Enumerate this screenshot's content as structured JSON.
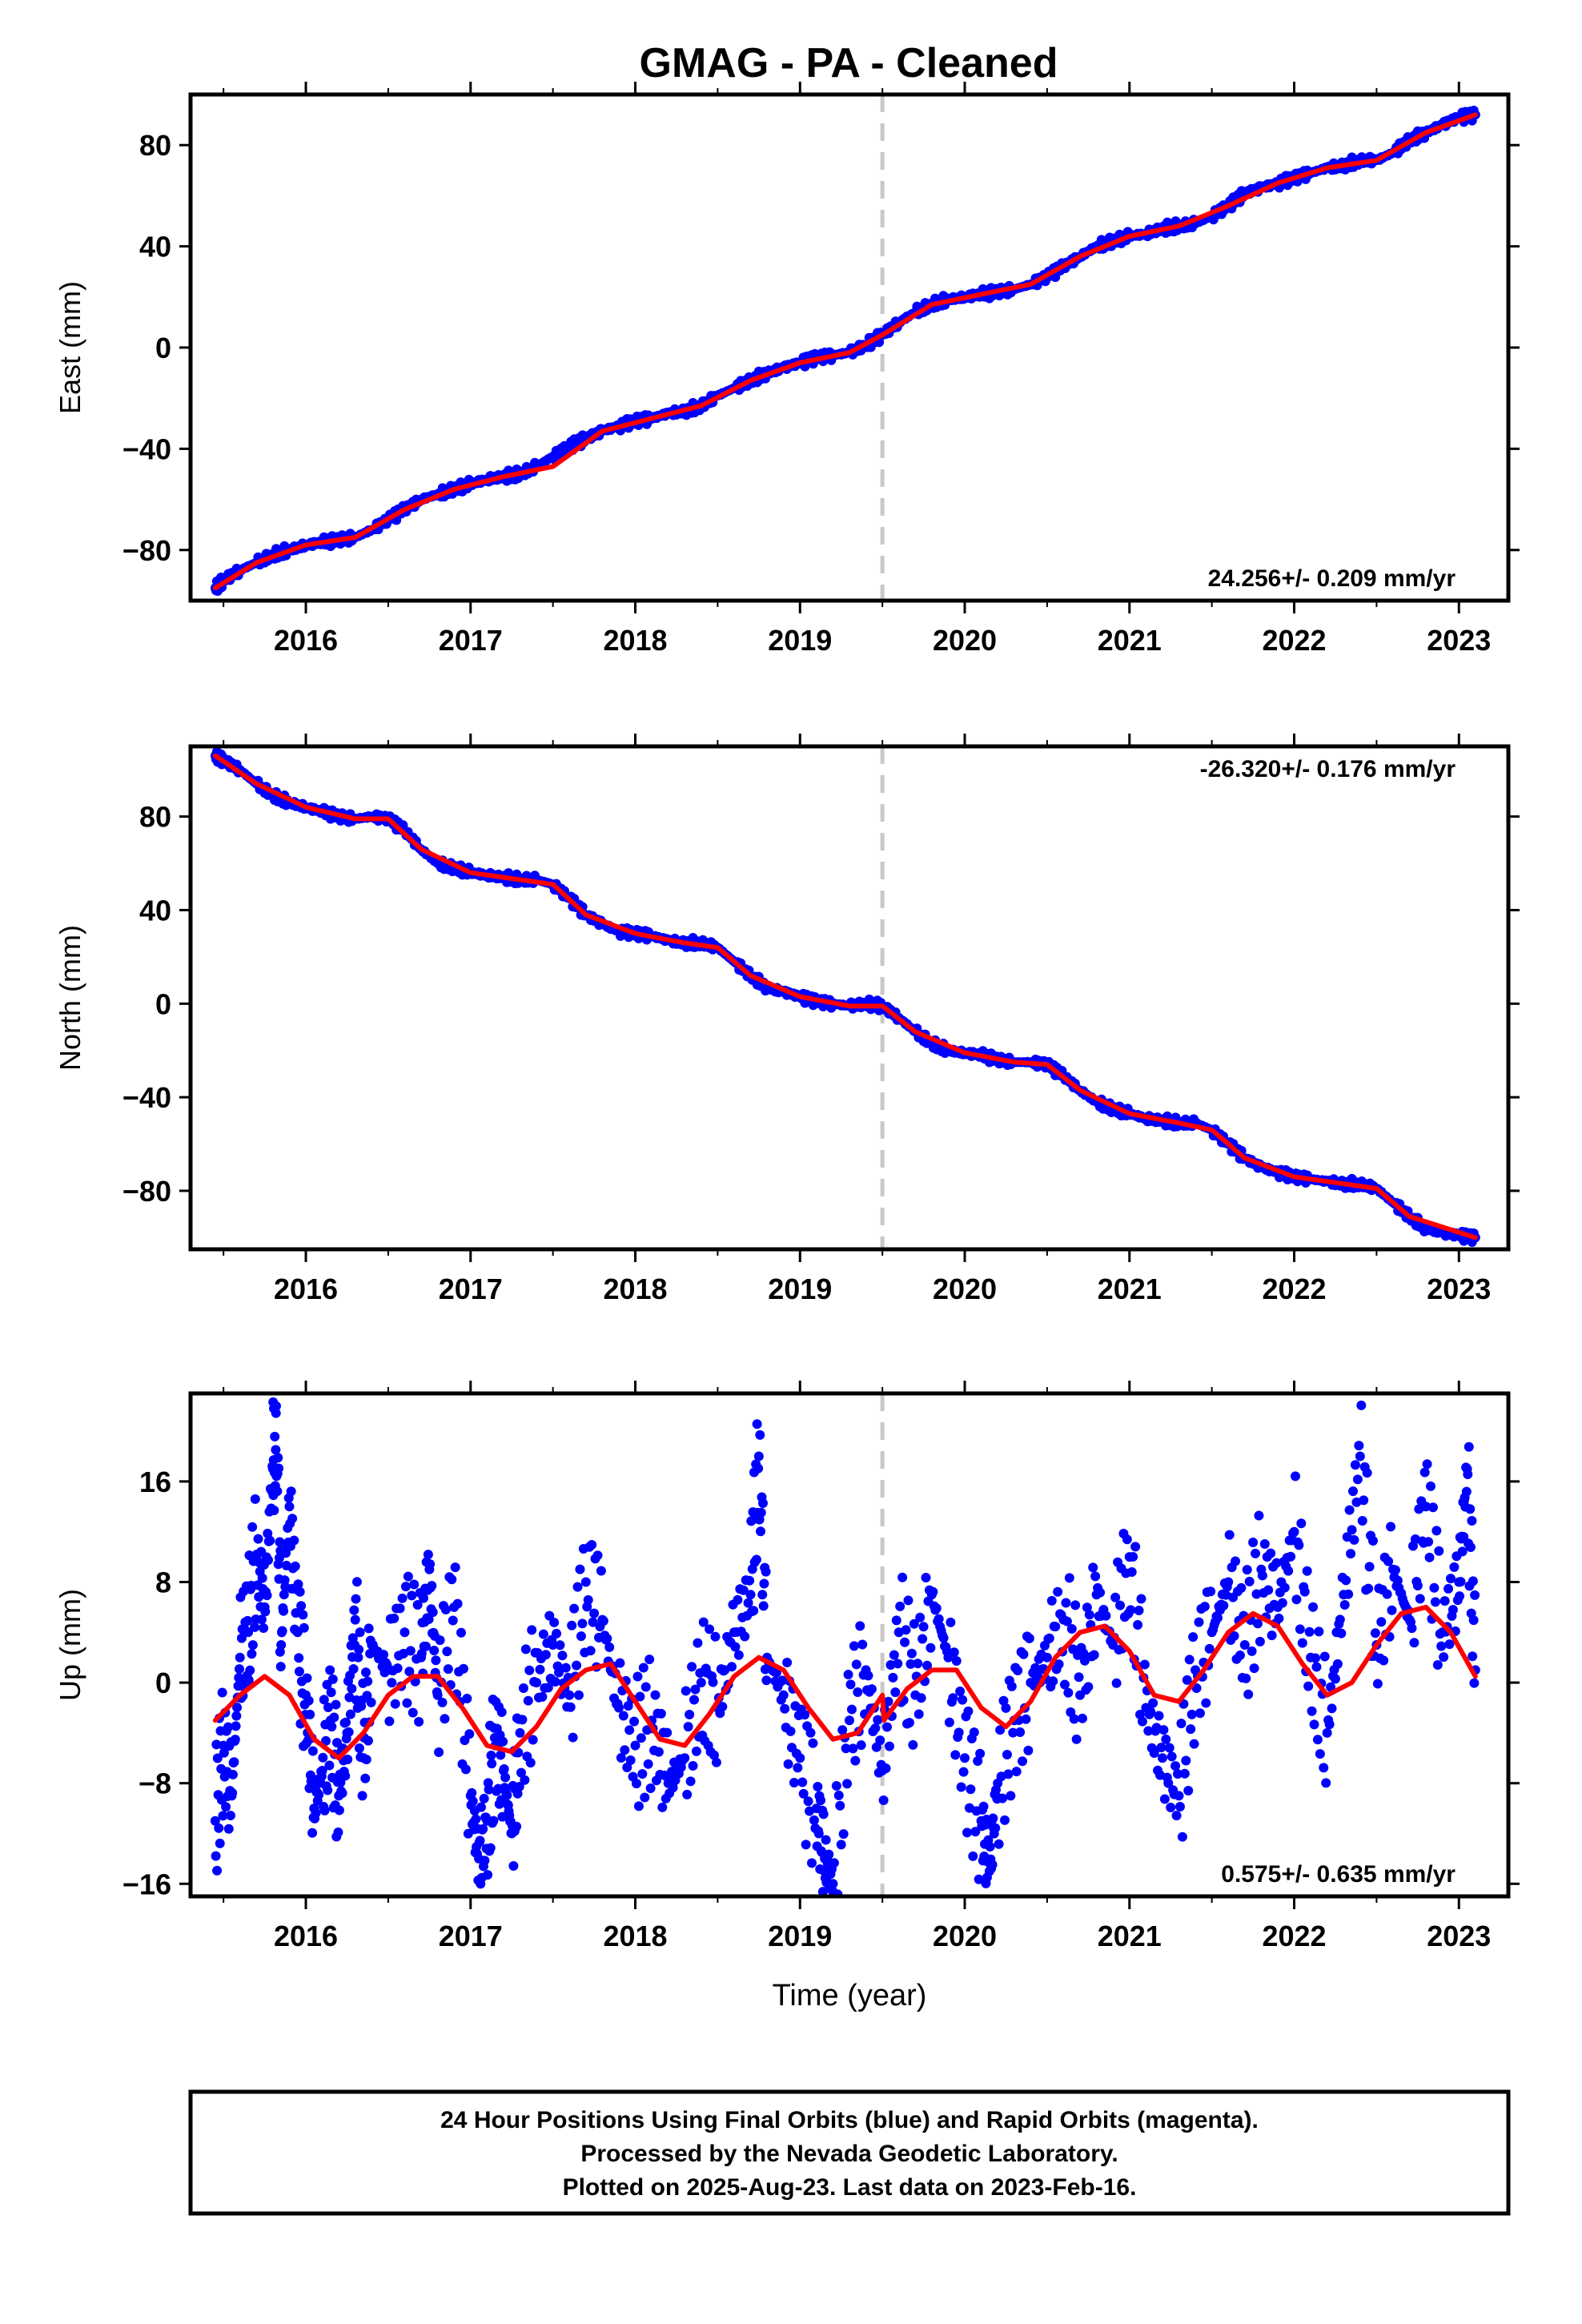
{
  "title": "GMAG  - PA - Cleaned",
  "colors": {
    "data_points": "#0000ff",
    "model_line": "#ff0000",
    "break_line": "#c8c8c8",
    "frame": "#000000"
  },
  "chart_data": [
    {
      "type": "scatter",
      "component": "East",
      "ylabel": "East (mm)",
      "xlabel": "",
      "xlim": [
        2015.3,
        2023.3
      ],
      "ylim": [
        -100,
        100
      ],
      "yticks": [
        -80,
        -40,
        0,
        40,
        80
      ],
      "xticks": [
        2016,
        2017,
        2018,
        2019,
        2020,
        2021,
        2022,
        2023
      ],
      "break_epoch": 2019.5,
      "rate_label": "24.256+/- 0.209 mm/yr",
      "rate_position": "bottom-right",
      "series": [
        {
          "style": "points",
          "x": [
            2015.45,
            2015.5,
            2015.6,
            2015.7,
            2015.8,
            2015.9,
            2016.0,
            2016.1,
            2016.2,
            2016.3,
            2016.4,
            2016.5,
            2016.6,
            2016.7,
            2016.8,
            2016.9,
            2017.0,
            2017.1,
            2017.2,
            2017.3,
            2017.4,
            2017.5,
            2017.6,
            2017.7,
            2017.8,
            2017.9,
            2018.0,
            2018.1,
            2018.2,
            2018.3,
            2018.4,
            2018.5,
            2018.6,
            2018.7,
            2018.8,
            2018.9,
            2019.0,
            2019.1,
            2019.2,
            2019.3,
            2019.4,
            2019.5,
            2019.6,
            2019.7,
            2019.8,
            2019.9,
            2020.0,
            2020.1,
            2020.2,
            2020.3,
            2020.4,
            2020.5,
            2020.6,
            2020.7,
            2020.8,
            2020.9,
            2021.0,
            2021.1,
            2021.2,
            2021.3,
            2021.4,
            2021.5,
            2021.6,
            2021.7,
            2021.8,
            2021.9,
            2022.0,
            2022.1,
            2022.2,
            2022.3,
            2022.4,
            2022.5,
            2022.6,
            2022.7,
            2022.8,
            2022.9,
            2023.0,
            2023.1
          ],
          "y": [
            -95,
            -92,
            -88,
            -85,
            -82,
            -80,
            -78,
            -77,
            -76,
            -75,
            -72,
            -68,
            -64,
            -60,
            -58,
            -56,
            -54,
            -52,
            -51,
            -50,
            -47,
            -43,
            -39,
            -36,
            -33,
            -31,
            -29,
            -28,
            -26,
            -25,
            -23,
            -19,
            -16,
            -13,
            -10,
            -8,
            -6,
            -4,
            -3,
            -2,
            1,
            5,
            10,
            14,
            17,
            19,
            20,
            21,
            22,
            23,
            25,
            28,
            32,
            36,
            40,
            42,
            44,
            45,
            47,
            48,
            49,
            52,
            56,
            61,
            63,
            65,
            67,
            69,
            71,
            72,
            74,
            74,
            77,
            82,
            85,
            88,
            91,
            92
          ]
        },
        {
          "style": "line",
          "x": [
            2015.45,
            2015.7,
            2016.0,
            2016.3,
            2016.6,
            2016.9,
            2017.2,
            2017.5,
            2017.8,
            2018.1,
            2018.4,
            2018.7,
            2019.0,
            2019.3,
            2019.5,
            2019.8,
            2020.1,
            2020.4,
            2020.7,
            2021.0,
            2021.3,
            2021.6,
            2021.9,
            2022.2,
            2022.5,
            2022.8,
            2023.1
          ],
          "y": [
            -95,
            -85,
            -78,
            -75,
            -64,
            -56,
            -51,
            -47,
            -33,
            -28,
            -23,
            -13,
            -6,
            -2,
            5,
            17,
            21,
            25,
            36,
            44,
            48,
            56,
            65,
            71,
            74,
            85,
            92
          ]
        }
      ]
    },
    {
      "type": "scatter",
      "component": "North",
      "ylabel": "North (mm)",
      "xlabel": "",
      "xlim": [
        2015.3,
        2023.3
      ],
      "ylim": [
        -105,
        110
      ],
      "yticks": [
        -80,
        -40,
        0,
        40,
        80
      ],
      "xticks": [
        2016,
        2017,
        2018,
        2019,
        2020,
        2021,
        2022,
        2023
      ],
      "break_epoch": 2019.5,
      "rate_label": "-26.320+/- 0.176 mm/yr",
      "rate_position": "top-right",
      "series": [
        {
          "style": "points",
          "x": [
            2015.45,
            2015.5,
            2015.6,
            2015.7,
            2015.8,
            2015.9,
            2016.0,
            2016.1,
            2016.2,
            2016.3,
            2016.4,
            2016.5,
            2016.6,
            2016.7,
            2016.8,
            2016.9,
            2017.0,
            2017.1,
            2017.2,
            2017.3,
            2017.4,
            2017.5,
            2017.6,
            2017.7,
            2017.8,
            2017.9,
            2018.0,
            2018.1,
            2018.2,
            2018.3,
            2018.4,
            2018.5,
            2018.6,
            2018.7,
            2018.8,
            2018.9,
            2019.0,
            2019.1,
            2019.2,
            2019.3,
            2019.4,
            2019.5,
            2019.6,
            2019.7,
            2019.8,
            2019.9,
            2020.0,
            2020.1,
            2020.2,
            2020.3,
            2020.4,
            2020.5,
            2020.6,
            2020.7,
            2020.8,
            2020.9,
            2021.0,
            2021.1,
            2021.2,
            2021.3,
            2021.4,
            2021.5,
            2021.6,
            2021.7,
            2021.8,
            2021.9,
            2022.0,
            2022.1,
            2022.2,
            2022.3,
            2022.4,
            2022.5,
            2022.6,
            2022.7,
            2022.8,
            2022.9,
            2023.0,
            2023.1
          ],
          "y": [
            106,
            104,
            100,
            94,
            89,
            86,
            84,
            82,
            80,
            79,
            80,
            79,
            74,
            66,
            60,
            58,
            56,
            55,
            54,
            53,
            53,
            51,
            45,
            38,
            34,
            31,
            30,
            29,
            27,
            26,
            26,
            24,
            18,
            12,
            7,
            5,
            3,
            1,
            0,
            -1,
            0,
            -1,
            -6,
            -12,
            -17,
            -20,
            -21,
            -22,
            -24,
            -25,
            -25,
            -26,
            -31,
            -37,
            -42,
            -45,
            -47,
            -49,
            -50,
            -51,
            -51,
            -54,
            -60,
            -66,
            -70,
            -72,
            -74,
            -75,
            -76,
            -77,
            -77,
            -79,
            -85,
            -91,
            -96,
            -98,
            -99,
            -100
          ]
        },
        {
          "style": "line",
          "x": [
            2015.45,
            2015.7,
            2016.0,
            2016.3,
            2016.5,
            2016.7,
            2017.0,
            2017.3,
            2017.5,
            2017.7,
            2018.0,
            2018.3,
            2018.5,
            2018.7,
            2019.0,
            2019.3,
            2019.5,
            2019.7,
            2020.0,
            2020.3,
            2020.5,
            2020.7,
            2021.0,
            2021.3,
            2021.5,
            2021.7,
            2022.0,
            2022.3,
            2022.5,
            2022.7,
            2023.1
          ],
          "y": [
            106,
            94,
            84,
            79,
            79,
            66,
            56,
            53,
            51,
            38,
            30,
            26,
            24,
            12,
            3,
            -1,
            -1,
            -12,
            -21,
            -25,
            -26,
            -37,
            -47,
            -51,
            -54,
            -66,
            -74,
            -77,
            -79,
            -91,
            -100
          ]
        }
      ]
    },
    {
      "type": "scatter",
      "component": "Up",
      "ylabel": "Up (mm)",
      "xlabel": "Time (year)",
      "xlim": [
        2015.3,
        2023.3
      ],
      "ylim": [
        -17,
        23
      ],
      "yticks": [
        -16,
        -8,
        0,
        8,
        16
      ],
      "xticks": [
        2016,
        2017,
        2018,
        2019,
        2020,
        2021,
        2022,
        2023
      ],
      "break_epoch": 2019.5,
      "rate_label": "0.575+/- 0.635 mm/yr",
      "rate_position": "bottom-right",
      "series": [
        {
          "style": "points",
          "x": [
            2015.45,
            2015.5,
            2015.55,
            2015.6,
            2015.65,
            2015.7,
            2015.75,
            2015.8,
            2015.82,
            2015.85,
            2015.9,
            2015.95,
            2016.0,
            2016.05,
            2016.1,
            2016.15,
            2016.2,
            2016.25,
            2016.3,
            2016.35,
            2016.4,
            2016.5,
            2016.6,
            2016.7,
            2016.75,
            2016.8,
            2016.9,
            2017.0,
            2017.05,
            2017.1,
            2017.15,
            2017.2,
            2017.25,
            2017.3,
            2017.4,
            2017.5,
            2017.6,
            2017.7,
            2017.8,
            2017.9,
            2018.0,
            2018.1,
            2018.2,
            2018.3,
            2018.4,
            2018.5,
            2018.6,
            2018.7,
            2018.75,
            2018.8,
            2018.9,
            2019.0,
            2019.1,
            2019.15,
            2019.2,
            2019.3,
            2019.4,
            2019.5,
            2019.6,
            2019.7,
            2019.8,
            2019.9,
            2020.0,
            2020.1,
            2020.15,
            2020.2,
            2020.3,
            2020.4,
            2020.5,
            2020.6,
            2020.7,
            2020.8,
            2020.9,
            2021.0,
            2021.1,
            2021.2,
            2021.3,
            2021.4,
            2021.5,
            2021.6,
            2021.7,
            2021.8,
            2021.9,
            2022.0,
            2022.1,
            2022.2,
            2022.3,
            2022.4,
            2022.5,
            2022.6,
            2022.7,
            2022.8,
            2022.9,
            2023.0,
            2023.05,
            2023.1
          ],
          "y": [
            -11,
            -5,
            -9,
            2,
            4,
            10,
            6,
            17,
            22,
            3,
            14,
            4,
            -1,
            -10,
            -7,
            -3,
            -9,
            -4,
            5,
            -6,
            3,
            1,
            4,
            2,
            9,
            -1,
            6,
            -9,
            -14,
            -11,
            -5,
            -7,
            -12,
            -4,
            0,
            3,
            -1,
            8,
            5,
            -2,
            -5,
            -3,
            -8,
            -6,
            0,
            -2,
            4,
            7,
            18,
            2,
            -1,
            -6,
            -10,
            -14,
            -16,
            -3,
            1,
            -7,
            4,
            -1,
            7,
            2,
            -6,
            -11,
            -15,
            -8,
            -3,
            0,
            2,
            5,
            -1,
            7,
            3,
            10,
            -2,
            -6,
            -9,
            1,
            4,
            8,
            3,
            9,
            6,
            12,
            2,
            -4,
            7,
            18,
            3,
            9,
            5,
            14,
            4,
            8,
            17,
            1
          ]
        },
        {
          "style": "line",
          "x": [
            2015.45,
            2015.6,
            2015.75,
            2015.9,
            2016.05,
            2016.2,
            2016.35,
            2016.5,
            2016.65,
            2016.8,
            2016.95,
            2017.1,
            2017.25,
            2017.4,
            2017.55,
            2017.7,
            2017.85,
            2018.0,
            2018.15,
            2018.3,
            2018.45,
            2018.6,
            2018.75,
            2018.9,
            2019.05,
            2019.2,
            2019.35,
            2019.5,
            2019.51,
            2019.65,
            2019.8,
            2019.95,
            2020.1,
            2020.25,
            2020.4,
            2020.55,
            2020.7,
            2020.85,
            2021.0,
            2021.15,
            2021.3,
            2021.45,
            2021.6,
            2021.75,
            2021.9,
            2022.05,
            2022.2,
            2022.35,
            2022.5,
            2022.65,
            2022.8,
            2022.95,
            2023.1
          ],
          "y": [
            -3,
            -1,
            0.5,
            -1,
            -4.5,
            -6,
            -4,
            -1,
            0.5,
            0.5,
            -2,
            -5,
            -5.5,
            -3.5,
            -0.5,
            1,
            1.5,
            -1.5,
            -4.5,
            -5,
            -2.5,
            0.5,
            2,
            1,
            -2,
            -4.5,
            -4,
            -1,
            -3,
            -0.5,
            1,
            1,
            -2,
            -3.5,
            -1.5,
            2,
            4,
            4.5,
            2.5,
            -1,
            -1.5,
            1,
            4,
            5.5,
            4.5,
            1.5,
            -1,
            0,
            3,
            5.5,
            6,
            4,
            0.5
          ]
        }
      ]
    }
  ],
  "footer": {
    "line1": "24 Hour Positions Using Final Orbits (blue) and Rapid Orbits (magenta).",
    "line2": "Processed by the Nevada Geodetic Laboratory.",
    "line3": "Plotted on 2025-Aug-23. Last data on 2023-Feb-16."
  }
}
